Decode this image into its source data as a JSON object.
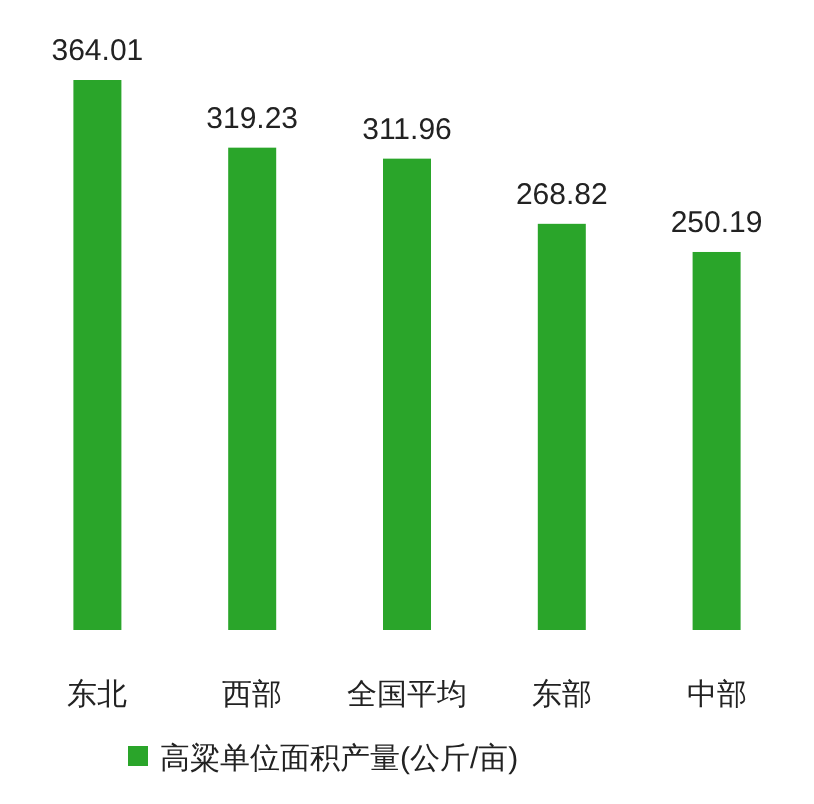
{
  "chart_data": {
    "type": "bar",
    "categories": [
      "东北",
      "西部",
      "全国平均",
      "东部",
      "中部"
    ],
    "series": [
      {
        "name": "高粱单位面积产量(公斤/亩)",
        "color": "#2aa52a",
        "values": [
          364.01,
          319.23,
          311.96,
          268.82,
          250.19
        ]
      }
    ],
    "data_labels": true,
    "legend": "bottom"
  }
}
